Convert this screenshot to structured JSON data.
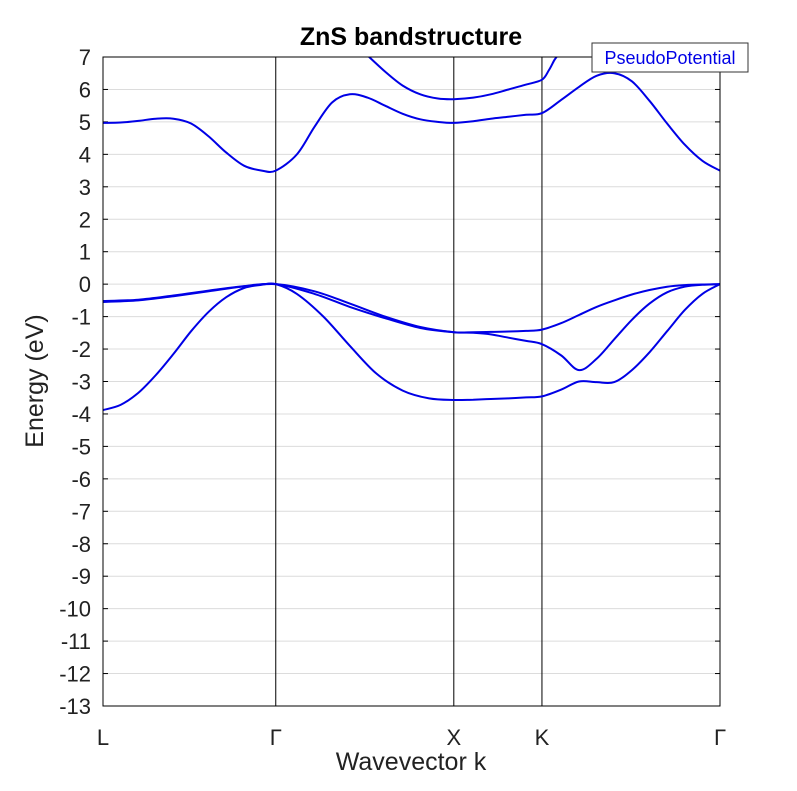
{
  "chart_data": {
    "type": "line",
    "title": "ZnS bandstructure",
    "xlabel": "Wavevector k",
    "ylabel": "Energy (eV)",
    "ylim": [
      -13,
      7
    ],
    "yticks": [
      7,
      6,
      5,
      4,
      3,
      2,
      1,
      0,
      -1,
      -2,
      -3,
      -4,
      -5,
      -6,
      -7,
      -8,
      -9,
      -10,
      -11,
      -12,
      -13
    ],
    "xlim": [
      0,
      3.5
    ],
    "kpoints": [
      {
        "label": "L",
        "x": 0
      },
      {
        "label": "Γ",
        "x": 0.98
      },
      {
        "label": "X",
        "x": 1.99
      },
      {
        "label": "K",
        "x": 2.49
      },
      {
        "label": "Γ",
        "x": 3.5
      }
    ],
    "grid": "horizontal",
    "legend": {
      "position": "top-right",
      "entries": [
        "PseudoPotential"
      ]
    },
    "color": "#0000e6",
    "series": [
      {
        "name": "PseudoPotential",
        "x": [
          0,
          0.1,
          0.2,
          0.3,
          0.4,
          0.5,
          0.6,
          0.7,
          0.8,
          0.9,
          0.98,
          1.1,
          1.25,
          1.4,
          1.55,
          1.7,
          1.85,
          1.99,
          2.1,
          2.2,
          2.3,
          2.4,
          2.49,
          2.6,
          2.7,
          2.8,
          2.9,
          3.0,
          3.1,
          3.2,
          3.3,
          3.4,
          3.5
        ],
        "y": [
          -3.88,
          -3.72,
          -3.35,
          -2.8,
          -2.15,
          -1.45,
          -0.85,
          -0.4,
          -0.12,
          -0.02,
          0.0,
          -0.3,
          -1.0,
          -1.9,
          -2.75,
          -3.28,
          -3.52,
          -3.57,
          -3.56,
          -3.54,
          -3.52,
          -3.49,
          -3.46,
          -3.25,
          -3.0,
          -3.02,
          -3.02,
          -2.65,
          -2.1,
          -1.45,
          -0.8,
          -0.3,
          0.0
        ]
      },
      {
        "name": "PseudoPotential",
        "x": [
          0,
          0.2,
          0.4,
          0.6,
          0.8,
          0.98,
          1.2,
          1.4,
          1.6,
          1.8,
          1.99,
          2.1,
          2.2,
          2.3,
          2.4,
          2.49,
          2.6,
          2.7,
          2.8,
          2.9,
          3.0,
          3.1,
          3.2,
          3.3,
          3.4,
          3.5
        ],
        "y": [
          -0.52,
          -0.48,
          -0.35,
          -0.2,
          -0.06,
          0.0,
          -0.3,
          -0.7,
          -1.05,
          -1.35,
          -1.48,
          -1.5,
          -1.55,
          -1.65,
          -1.75,
          -1.85,
          -2.2,
          -2.65,
          -2.3,
          -1.7,
          -1.1,
          -0.6,
          -0.25,
          -0.08,
          -0.02,
          0.0
        ]
      },
      {
        "name": "PseudoPotential",
        "x": [
          0,
          0.2,
          0.4,
          0.6,
          0.8,
          0.98,
          1.2,
          1.4,
          1.6,
          1.8,
          1.99,
          2.1,
          2.2,
          2.3,
          2.4,
          2.49,
          2.6,
          2.7,
          2.8,
          2.9,
          3.0,
          3.1,
          3.2,
          3.3,
          3.4,
          3.5
        ],
        "y": [
          -0.55,
          -0.5,
          -0.37,
          -0.22,
          -0.07,
          0.0,
          -0.22,
          -0.6,
          -1.0,
          -1.32,
          -1.48,
          -1.48,
          -1.47,
          -1.46,
          -1.44,
          -1.4,
          -1.2,
          -0.95,
          -0.7,
          -0.5,
          -0.32,
          -0.18,
          -0.08,
          -0.03,
          -0.01,
          0.0
        ]
      },
      {
        "name": "PseudoPotential",
        "x": [
          0,
          0.1,
          0.2,
          0.3,
          0.4,
          0.5,
          0.6,
          0.7,
          0.8,
          0.9,
          0.98,
          1.1,
          1.2,
          1.3,
          1.4,
          1.5,
          1.6,
          1.7,
          1.8,
          1.9,
          1.99,
          2.1,
          2.2,
          2.3,
          2.4,
          2.49,
          2.6,
          2.7,
          2.8,
          2.9,
          3.0,
          3.1,
          3.2,
          3.3,
          3.4,
          3.5
        ],
        "y": [
          4.97,
          4.98,
          5.03,
          5.1,
          5.1,
          4.95,
          4.55,
          4.05,
          3.65,
          3.5,
          3.5,
          4.0,
          4.85,
          5.6,
          5.85,
          5.75,
          5.5,
          5.25,
          5.08,
          5.0,
          4.97,
          5.02,
          5.1,
          5.16,
          5.22,
          5.27,
          5.68,
          6.08,
          6.42,
          6.5,
          6.25,
          5.65,
          4.95,
          4.3,
          3.8,
          3.5
        ]
      },
      {
        "name": "PseudoPotential",
        "x": [
          1.5,
          1.6,
          1.7,
          1.8,
          1.9,
          1.99,
          2.1,
          2.2,
          2.3,
          2.4,
          2.49,
          2.53,
          2.56,
          2.58
        ],
        "y": [
          7.05,
          6.55,
          6.12,
          5.85,
          5.72,
          5.7,
          5.75,
          5.85,
          6.0,
          6.15,
          6.3,
          6.6,
          6.9,
          7.05
        ]
      }
    ]
  }
}
